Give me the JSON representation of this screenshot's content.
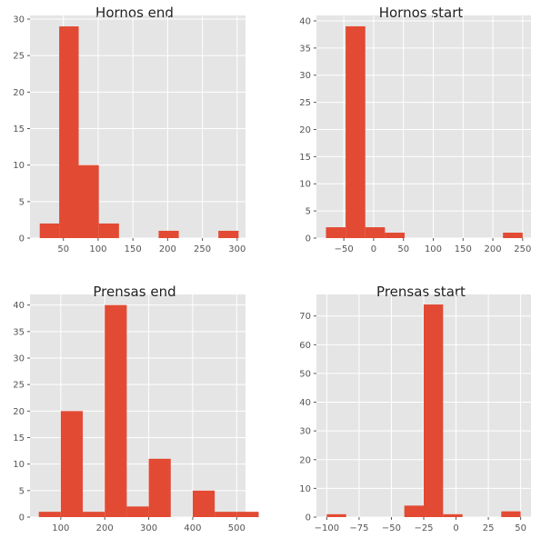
{
  "chart_data": [
    {
      "type": "bar",
      "title": "Hornos end",
      "xlabel": "",
      "ylabel": "",
      "xlim": [
        2,
        312
      ],
      "ylim": [
        0,
        30.5
      ],
      "xticks": [
        50,
        100,
        150,
        200,
        250,
        300
      ],
      "yticks": [
        0,
        5,
        10,
        15,
        20,
        25,
        30
      ],
      "bins": [
        {
          "x0": 16,
          "x1": 44,
          "count": 2
        },
        {
          "x0": 44,
          "x1": 72,
          "count": 29
        },
        {
          "x0": 72,
          "x1": 101,
          "count": 10
        },
        {
          "x0": 101,
          "x1": 130,
          "count": 2
        },
        {
          "x0": 130,
          "x1": 159,
          "count": 0
        },
        {
          "x0": 159,
          "x1": 187,
          "count": 0
        },
        {
          "x0": 187,
          "x1": 216,
          "count": 1
        },
        {
          "x0": 216,
          "x1": 245,
          "count": 0
        },
        {
          "x0": 245,
          "x1": 273,
          "count": 0
        },
        {
          "x0": 273,
          "x1": 302,
          "count": 1
        }
      ],
      "grid": true
    },
    {
      "type": "bar",
      "title": "Hornos start",
      "xlabel": "",
      "ylabel": "",
      "xlim": [
        -96,
        264
      ],
      "ylim": [
        0,
        41
      ],
      "xticks": [
        -50,
        0,
        50,
        100,
        150,
        200,
        250
      ],
      "xtick_labels": [
        "−50",
        "0",
        "50",
        "100",
        "150",
        "200",
        "250"
      ],
      "yticks": [
        0,
        5,
        10,
        15,
        20,
        25,
        30,
        35,
        40
      ],
      "bins": [
        {
          "x0": -80,
          "x1": -47,
          "count": 2
        },
        {
          "x0": -47,
          "x1": -14,
          "count": 39
        },
        {
          "x0": -14,
          "x1": 19,
          "count": 2
        },
        {
          "x0": 19,
          "x1": 52,
          "count": 1
        },
        {
          "x0": 52,
          "x1": 85,
          "count": 0
        },
        {
          "x0": 85,
          "x1": 118,
          "count": 0
        },
        {
          "x0": 118,
          "x1": 151,
          "count": 0
        },
        {
          "x0": 151,
          "x1": 184,
          "count": 0
        },
        {
          "x0": 184,
          "x1": 217,
          "count": 0
        },
        {
          "x0": 217,
          "x1": 250,
          "count": 1
        }
      ],
      "grid": true
    },
    {
      "type": "bar",
      "title": "Prensas end",
      "xlabel": "",
      "ylabel": "",
      "xlim": [
        30,
        520
      ],
      "ylim": [
        0,
        42
      ],
      "xticks": [
        100,
        200,
        300,
        400,
        500
      ],
      "yticks": [
        0,
        5,
        10,
        15,
        20,
        25,
        30,
        35,
        40
      ],
      "bins": [
        {
          "x0": 50,
          "x1": 100,
          "count": 1
        },
        {
          "x0": 100,
          "x1": 150,
          "count": 20
        },
        {
          "x0": 150,
          "x1": 200,
          "count": 1
        },
        {
          "x0": 200,
          "x1": 250,
          "count": 40
        },
        {
          "x0": 250,
          "x1": 300,
          "count": 2
        },
        {
          "x0": 300,
          "x1": 350,
          "count": 11
        },
        {
          "x0": 350,
          "x1": 400,
          "count": 0
        },
        {
          "x0": 400,
          "x1": 450,
          "count": 5
        },
        {
          "x0": 450,
          "x1": 500,
          "count": 1
        },
        {
          "x0": 500,
          "x1": 550,
          "count": 1
        }
      ],
      "grid": true
    },
    {
      "type": "bar",
      "title": "Prensas start",
      "xlabel": "",
      "ylabel": "",
      "xlim": [
        -108,
        58
      ],
      "ylim": [
        0,
        77.5
      ],
      "xticks": [
        -100,
        -75,
        -50,
        -25,
        0,
        25,
        50
      ],
      "xtick_labels": [
        "−100",
        "−75",
        "−50",
        "−25",
        "0",
        "25",
        "50"
      ],
      "yticks": [
        0,
        10,
        20,
        30,
        40,
        50,
        60,
        70
      ],
      "bins": [
        {
          "x0": -100,
          "x1": -85,
          "count": 1
        },
        {
          "x0": -85,
          "x1": -70,
          "count": 0
        },
        {
          "x0": -70,
          "x1": -55,
          "count": 0
        },
        {
          "x0": -55,
          "x1": -40,
          "count": 0
        },
        {
          "x0": -40,
          "x1": -25,
          "count": 4
        },
        {
          "x0": -25,
          "x1": -10,
          "count": 74
        },
        {
          "x0": -10,
          "x1": 5,
          "count": 1
        },
        {
          "x0": 5,
          "x1": 20,
          "count": 0
        },
        {
          "x0": 20,
          "x1": 35,
          "count": 0
        },
        {
          "x0": 35,
          "x1": 50,
          "count": 2
        }
      ],
      "grid": true
    }
  ]
}
